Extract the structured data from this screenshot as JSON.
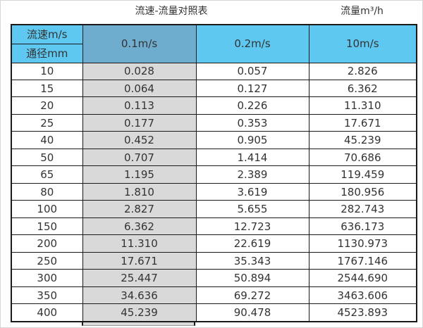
{
  "titles": {
    "main": "流速-流量对照表",
    "right": "流量m³/h"
  },
  "table": {
    "corner": {
      "top": "流速m/s",
      "bottom": "通径mm"
    },
    "columns": [
      "0.1m/s",
      "0.2m/s",
      "10m/s"
    ],
    "rows": [
      [
        "10",
        "0.028",
        "0.057",
        "2.826"
      ],
      [
        "15",
        "0.064",
        "0.127",
        "6.362"
      ],
      [
        "20",
        "0.113",
        "0.226",
        "11.310"
      ],
      [
        "25",
        "0.177",
        "0.353",
        "17.671"
      ],
      [
        "40",
        "0.452",
        "0.905",
        "45.239"
      ],
      [
        "50",
        "0.707",
        "1.414",
        "70.686"
      ],
      [
        "65",
        "1.195",
        "2.389",
        "119.459"
      ],
      [
        "80",
        "1.810",
        "3.619",
        "180.956"
      ],
      [
        "100",
        "2.827",
        "5.655",
        "282.743"
      ],
      [
        "150",
        "6.362",
        "12.723",
        "636.173"
      ],
      [
        "200",
        "11.310",
        "22.619",
        "1130.973"
      ],
      [
        "250",
        "17.671",
        "35.343",
        "1767.146"
      ],
      [
        "300",
        "25.447",
        "50.894",
        "2544.690"
      ],
      [
        "350",
        "34.636",
        "69.272",
        "3463.606"
      ],
      [
        "400",
        "45.239",
        "90.478",
        "4523.893"
      ]
    ]
  },
  "colors": {
    "header_blue": "#5fc8f0",
    "header_steel_blue": "#6fadce",
    "selected_column_gray": "#d9d9d9",
    "border": "#1a1a1a"
  },
  "chart_data": {
    "type": "table",
    "title": "流速-流量对照表",
    "unit_label": "流量m³/h",
    "row_header": "通径mm",
    "col_header": "流速m/s",
    "columns": [
      "0.1m/s",
      "0.2m/s",
      "10m/s"
    ],
    "diameters_mm": [
      10,
      15,
      20,
      25,
      40,
      50,
      65,
      80,
      100,
      150,
      200,
      250,
      300,
      350,
      400
    ],
    "flow_rates_m3_per_h": {
      "0.1m/s": [
        0.028,
        0.064,
        0.113,
        0.177,
        0.452,
        0.707,
        1.195,
        1.81,
        2.827,
        6.362,
        11.31,
        17.671,
        25.447,
        34.636,
        45.239
      ],
      "0.2m/s": [
        0.057,
        0.127,
        0.226,
        0.353,
        0.905,
        1.414,
        2.389,
        3.619,
        5.655,
        12.723,
        22.619,
        35.343,
        50.894,
        69.272,
        90.478
      ],
      "10m/s": [
        2.826,
        6.362,
        11.31,
        17.671,
        45.239,
        70.686,
        119.459,
        180.956,
        282.743,
        636.173,
        1130.973,
        1767.146,
        2544.69,
        3463.606,
        4523.893
      ]
    },
    "layout_hints": {
      "highlighted_column": "0.1m/s",
      "grid": true
    }
  }
}
